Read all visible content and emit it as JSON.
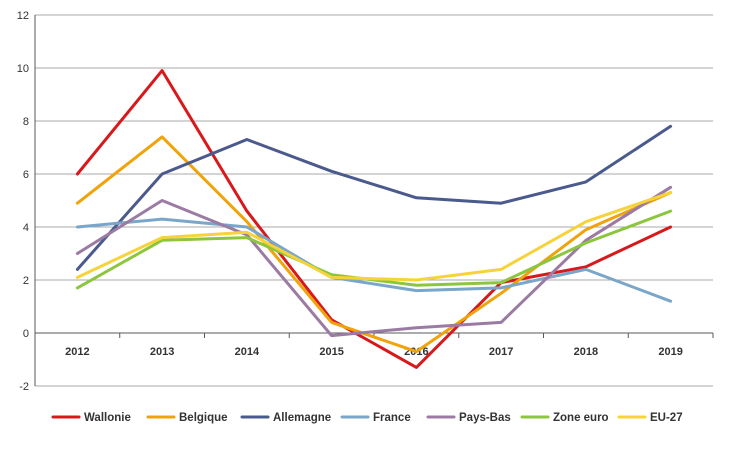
{
  "chart_data": {
    "type": "line",
    "title": "",
    "xlabel": "",
    "ylabel": "",
    "categories": [
      "2012",
      "2013",
      "2014",
      "2015",
      "2016",
      "2017",
      "2018",
      "2019"
    ],
    "ylim": [
      -2,
      12
    ],
    "yticks": [
      12,
      10,
      8,
      6,
      4,
      2,
      0,
      -2
    ],
    "ytick_labels": [
      "12",
      "10",
      "8",
      "6",
      "4",
      "2",
      "0",
      "-2"
    ],
    "grid": "horizontal",
    "legend_position": "bottom",
    "series": [
      {
        "name": "Wallonie",
        "color": "#d7191c",
        "values": [
          6.0,
          9.9,
          4.6,
          0.5,
          -1.3,
          1.9,
          2.5,
          4.0
        ]
      },
      {
        "name": "Belgique",
        "color": "#f0a30a",
        "values": [
          4.9,
          7.4,
          4.2,
          0.4,
          -0.7,
          1.5,
          3.9,
          5.3
        ]
      },
      {
        "name": "Allemagne",
        "color": "#4a5a8c",
        "values": [
          2.4,
          6.0,
          7.3,
          6.1,
          5.1,
          4.9,
          5.7,
          7.8
        ]
      },
      {
        "name": "France",
        "color": "#7aa6c9",
        "values": [
          4.0,
          4.3,
          4.0,
          2.1,
          1.6,
          1.7,
          2.4,
          1.2
        ]
      },
      {
        "name": "Pays-Bas",
        "color": "#9b7ba3",
        "values": [
          3.0,
          5.0,
          3.7,
          -0.1,
          0.2,
          0.4,
          3.5,
          5.5
        ]
      },
      {
        "name": "Zone euro",
        "color": "#8cc63e",
        "values": [
          1.7,
          3.5,
          3.6,
          2.2,
          1.8,
          1.9,
          3.4,
          4.6
        ]
      },
      {
        "name": "EU-27",
        "color": "#f7d33b",
        "values": [
          2.1,
          3.6,
          3.8,
          2.1,
          2.0,
          2.4,
          4.2,
          5.3
        ]
      }
    ]
  }
}
